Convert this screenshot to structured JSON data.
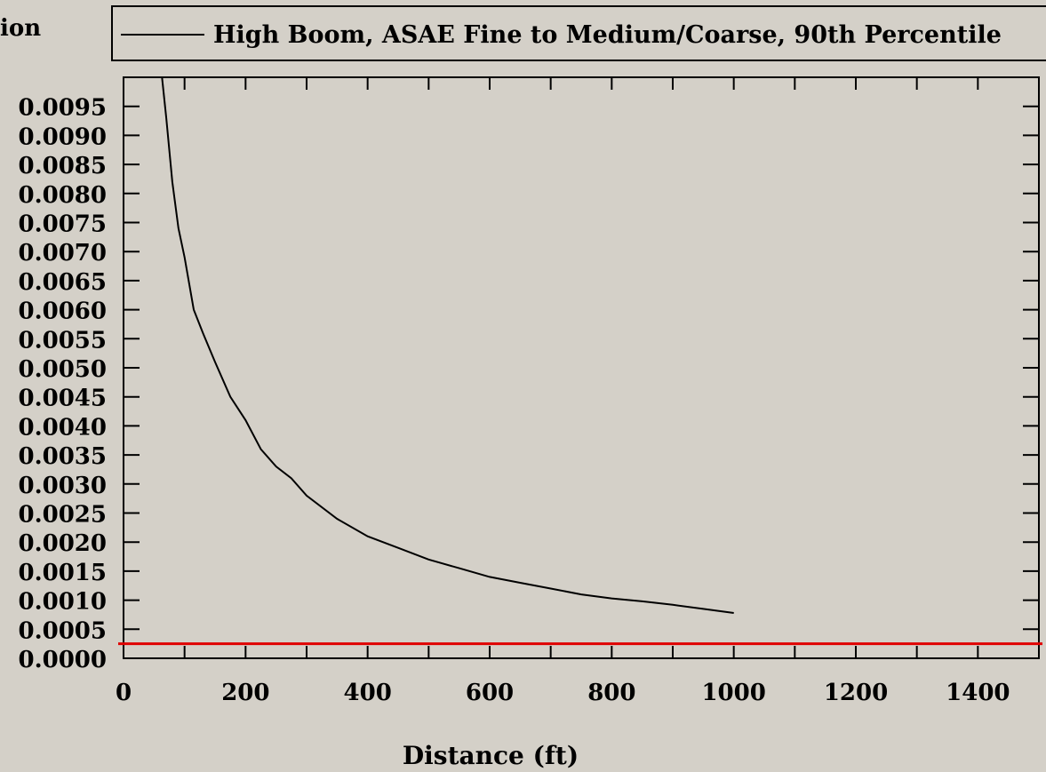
{
  "chart_data": {
    "type": "line",
    "ylabel_fragment": "ion",
    "xlabel": "Distance (ft)",
    "xlim": [
      0,
      1500
    ],
    "ylim": [
      0,
      0.01
    ],
    "x_ticks": [
      0,
      200,
      400,
      600,
      800,
      1000,
      1200,
      1400
    ],
    "x_tick_labels": [
      "0",
      "200",
      "400",
      "600",
      "800",
      "1000",
      "1200",
      "1400"
    ],
    "y_ticks": [
      0,
      0.0005,
      0.001,
      0.0015,
      0.002,
      0.0025,
      0.003,
      0.0035,
      0.004,
      0.0045,
      0.005,
      0.0055,
      0.006,
      0.0065,
      0.007,
      0.0075,
      0.008,
      0.0085,
      0.009,
      0.0095
    ],
    "y_tick_labels": [
      "0.0000",
      "0.0005",
      "0.0010",
      "0.0015",
      "0.0020",
      "0.0025",
      "0.0030",
      "0.0035",
      "0.0040",
      "0.0045",
      "0.0050",
      "0.0055",
      "0.0060",
      "0.0065",
      "0.0070",
      "0.0075",
      "0.0080",
      "0.0085",
      "0.0090",
      "0.0095"
    ],
    "legend": "top",
    "series": [
      {
        "name": "High Boom, ASAE Fine to Medium/Coarse, 90th Percentile",
        "color": "#000000",
        "x": [
          63,
          70,
          80,
          90,
          100,
          115,
          130,
          150,
          175,
          200,
          225,
          250,
          275,
          300,
          350,
          400,
          450,
          500,
          550,
          600,
          650,
          700,
          750,
          800,
          850,
          900,
          950,
          1000
        ],
        "y": [
          0.01,
          0.0093,
          0.0082,
          0.0074,
          0.0069,
          0.006,
          0.0056,
          0.0051,
          0.0045,
          0.0041,
          0.0036,
          0.0033,
          0.0031,
          0.0028,
          0.0024,
          0.0021,
          0.0019,
          0.0017,
          0.00155,
          0.0014,
          0.0013,
          0.0012,
          0.0011,
          0.00103,
          0.00098,
          0.00092,
          0.00085,
          0.00078
        ]
      }
    ],
    "reference_line": {
      "y": 0.00025,
      "color": "#e00000"
    }
  }
}
